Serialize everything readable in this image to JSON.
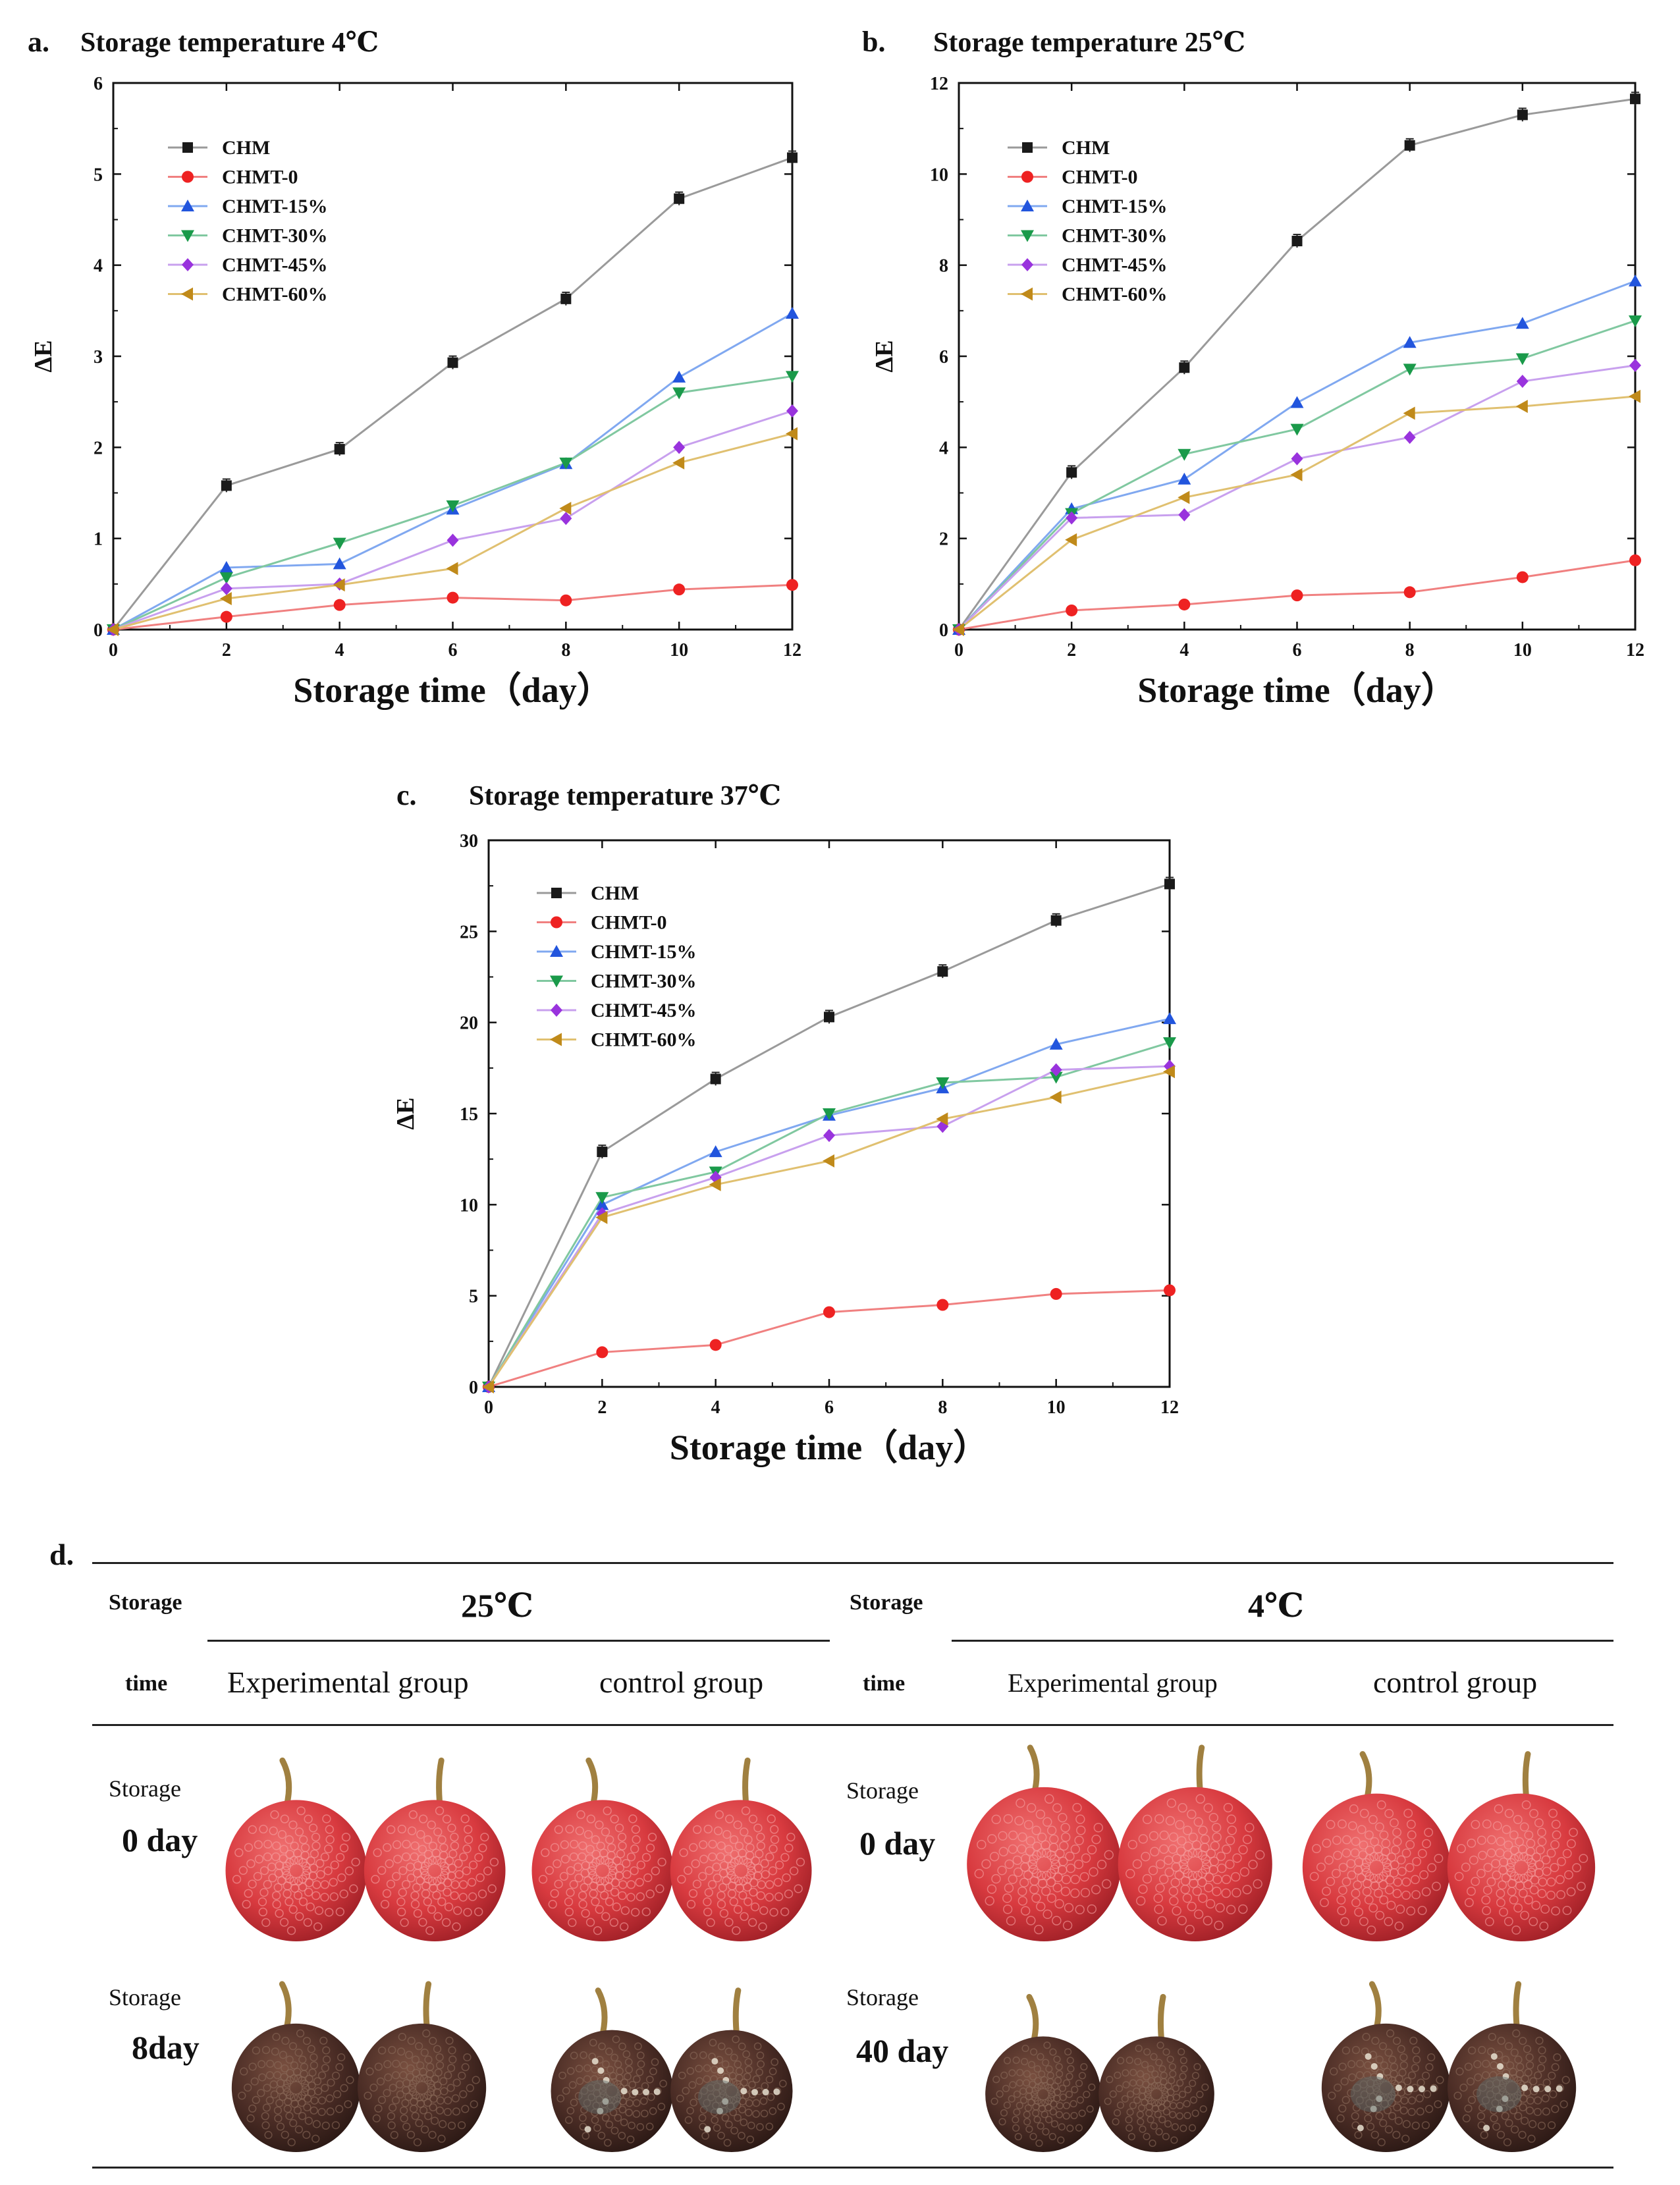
{
  "chart_data": [
    {
      "type": "line",
      "panel_label": "a.",
      "title": "Storage temperature 4℃",
      "xlabel": "Storage time（day）",
      "ylabel": "ΔE",
      "x": [
        0,
        2,
        4,
        6,
        8,
        10,
        12
      ],
      "xlim": [
        0,
        12
      ],
      "ylim": [
        0,
        6
      ],
      "xticks": [
        0,
        2,
        4,
        6,
        8,
        10,
        12
      ],
      "yticks": [
        0,
        1,
        2,
        3,
        4,
        5,
        6
      ],
      "legend_position": "top-left",
      "series": [
        {
          "name": "CHM",
          "marker": "square",
          "color": "#1a1a1a",
          "line_color": "#9a9a9a",
          "values": [
            0,
            1.58,
            1.98,
            2.93,
            3.63,
            4.73,
            5.18
          ]
        },
        {
          "name": "CHMT-0",
          "marker": "circle",
          "color": "#ee2222",
          "line_color": "#f08080",
          "values": [
            0,
            0.14,
            0.27,
            0.35,
            0.32,
            0.44,
            0.49
          ]
        },
        {
          "name": "CHMT-15%",
          "marker": "triangle-up",
          "color": "#2255dd",
          "line_color": "#80a8f0",
          "values": [
            0,
            0.68,
            0.72,
            1.32,
            1.82,
            2.77,
            3.47
          ]
        },
        {
          "name": "CHMT-30%",
          "marker": "triangle-down",
          "color": "#1a9a4a",
          "line_color": "#80c8a0",
          "values": [
            0,
            0.57,
            0.95,
            1.36,
            1.83,
            2.6,
            2.78
          ]
        },
        {
          "name": "CHMT-45%",
          "marker": "diamond",
          "color": "#9933dd",
          "line_color": "#c8a0ee",
          "values": [
            0,
            0.45,
            0.5,
            0.98,
            1.22,
            2.0,
            2.4
          ]
        },
        {
          "name": "CHMT-60%",
          "marker": "triangle-left",
          "color": "#c08a1a",
          "line_color": "#e0c070",
          "values": [
            0,
            0.34,
            0.49,
            0.67,
            1.33,
            1.83,
            2.15
          ]
        }
      ]
    },
    {
      "type": "line",
      "panel_label": "b.",
      "title": "Storage temperature 25℃",
      "xlabel": "Storage time（day）",
      "ylabel": "ΔE",
      "x": [
        0,
        2,
        4,
        6,
        8,
        10,
        12
      ],
      "xlim": [
        0,
        12
      ],
      "ylim": [
        0,
        12
      ],
      "xticks": [
        0,
        2,
        4,
        6,
        8,
        10,
        12
      ],
      "yticks": [
        0,
        2,
        4,
        6,
        8,
        10,
        12
      ],
      "legend_position": "top-left",
      "series": [
        {
          "name": "CHM",
          "marker": "square",
          "color": "#1a1a1a",
          "line_color": "#9a9a9a",
          "values": [
            0,
            3.45,
            5.75,
            8.53,
            10.63,
            11.3,
            11.65
          ]
        },
        {
          "name": "CHMT-0",
          "marker": "circle",
          "color": "#ee2222",
          "line_color": "#f08080",
          "values": [
            0,
            0.42,
            0.55,
            0.75,
            0.82,
            1.15,
            1.52
          ]
        },
        {
          "name": "CHMT-15%",
          "marker": "triangle-up",
          "color": "#2255dd",
          "line_color": "#80a8f0",
          "values": [
            0,
            2.65,
            3.3,
            4.98,
            6.3,
            6.72,
            7.65
          ]
        },
        {
          "name": "CHMT-30%",
          "marker": "triangle-down",
          "color": "#1a9a4a",
          "line_color": "#80c8a0",
          "values": [
            0,
            2.55,
            3.85,
            4.4,
            5.72,
            5.95,
            6.78
          ]
        },
        {
          "name": "CHMT-45%",
          "marker": "diamond",
          "color": "#9933dd",
          "line_color": "#c8a0ee",
          "values": [
            0,
            2.45,
            2.52,
            3.75,
            4.22,
            5.45,
            5.8
          ]
        },
        {
          "name": "CHMT-60%",
          "marker": "triangle-left",
          "color": "#c08a1a",
          "line_color": "#e0c070",
          "values": [
            0,
            1.97,
            2.9,
            3.4,
            4.75,
            4.9,
            5.12
          ]
        }
      ]
    },
    {
      "type": "line",
      "panel_label": "c.",
      "title": "Storage temperature 37℃",
      "xlabel": "Storage time（day）",
      "ylabel": "ΔE",
      "x": [
        0,
        2,
        4,
        6,
        8,
        10,
        12
      ],
      "xlim": [
        0,
        12
      ],
      "ylim": [
        0,
        30
      ],
      "xticks": [
        0,
        2,
        4,
        6,
        8,
        10,
        12
      ],
      "yticks": [
        0,
        5,
        10,
        15,
        20,
        25,
        30
      ],
      "legend_position": "top-left",
      "series": [
        {
          "name": "CHM",
          "marker": "square",
          "color": "#1a1a1a",
          "line_color": "#9a9a9a",
          "values": [
            0,
            12.9,
            16.9,
            20.3,
            22.8,
            25.6,
            27.6
          ]
        },
        {
          "name": "CHMT-0",
          "marker": "circle",
          "color": "#ee2222",
          "line_color": "#f08080",
          "values": [
            0,
            1.9,
            2.3,
            4.1,
            4.5,
            5.1,
            5.3
          ]
        },
        {
          "name": "CHMT-15%",
          "marker": "triangle-up",
          "color": "#2255dd",
          "line_color": "#80a8f0",
          "values": [
            0,
            10.0,
            12.9,
            14.9,
            16.4,
            18.8,
            20.2
          ]
        },
        {
          "name": "CHMT-30%",
          "marker": "triangle-down",
          "color": "#1a9a4a",
          "line_color": "#80c8a0",
          "values": [
            0,
            10.4,
            11.8,
            15.0,
            16.7,
            17.0,
            18.9
          ]
        },
        {
          "name": "CHMT-45%",
          "marker": "diamond",
          "color": "#9933dd",
          "line_color": "#c8a0ee",
          "values": [
            0,
            9.5,
            11.5,
            13.8,
            14.3,
            17.4,
            17.6
          ]
        },
        {
          "name": "CHMT-60%",
          "marker": "triangle-left",
          "color": "#c08a1a",
          "line_color": "#e0c070",
          "values": [
            0,
            9.3,
            11.1,
            12.4,
            14.7,
            15.9,
            17.3
          ]
        }
      ]
    }
  ],
  "panel_d": {
    "label": "d.",
    "storage": "Storage",
    "time": "time",
    "temp_25": "25℃",
    "temp_4": "4℃",
    "experimental_group": "Experimental group",
    "control_group": "control group",
    "row_storage_label": "Storage",
    "row1_25_day": "0 day",
    "row1_4_day": "0 day",
    "row2_25_day": "8day",
    "row2_4_day": "40 day",
    "fresh_lychee_color": "#d83a3f",
    "stored_lychee_color": "#4a2c25"
  }
}
